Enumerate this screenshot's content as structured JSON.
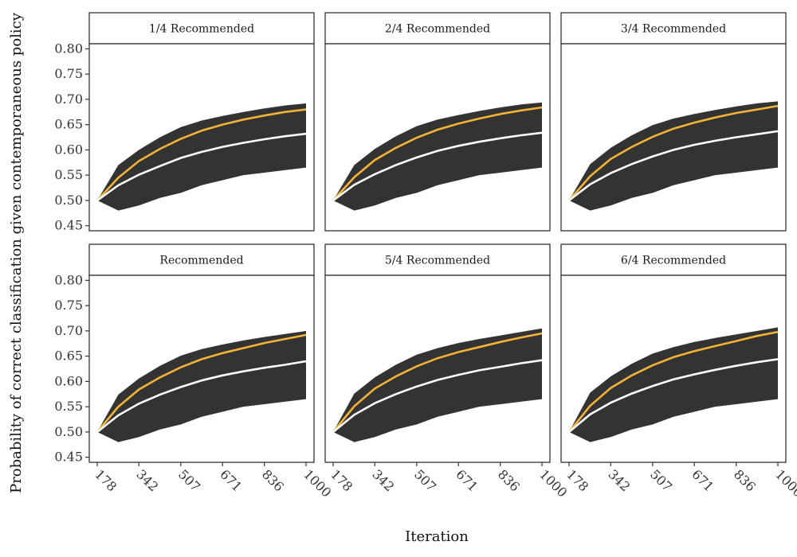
{
  "chart_data": {
    "type": "area",
    "xlabel": "Iteration",
    "ylabel": "Probability of correct classification given contemporaneous policy",
    "x_ticks": [
      178,
      342,
      507,
      671,
      836,
      1000
    ],
    "y_ticks": [
      "0.45",
      "0.50",
      "0.55",
      "0.60",
      "0.65",
      "0.70",
      "0.75",
      "0.80"
    ],
    "xlim": [
      178,
      1000
    ],
    "ylim": [
      0.44,
      0.81
    ],
    "colors": {
      "band": "#333333",
      "median": "#ffffff",
      "upper": "#f5b335"
    },
    "x": [
      178,
      261,
      342,
      425,
      507,
      589,
      671,
      753,
      836,
      918,
      1000
    ],
    "panels": [
      {
        "title": "1/4 Recommended",
        "series": [
          {
            "name": "band_upper",
            "values": [
              0.5,
              0.57,
              0.6,
              0.625,
              0.645,
              0.658,
              0.667,
              0.675,
              0.682,
              0.688,
              0.692
            ]
          },
          {
            "name": "band_lower",
            "values": [
              0.5,
              0.48,
              0.49,
              0.505,
              0.515,
              0.53,
              0.54,
              0.55,
              0.555,
              0.56,
              0.565
            ]
          },
          {
            "name": "upper_line",
            "values": [
              0.5,
              0.545,
              0.578,
              0.602,
              0.622,
              0.638,
              0.65,
              0.66,
              0.668,
              0.675,
              0.68
            ]
          },
          {
            "name": "median_line",
            "values": [
              0.5,
              0.53,
              0.551,
              0.568,
              0.584,
              0.596,
              0.606,
              0.614,
              0.621,
              0.627,
              0.632
            ]
          }
        ]
      },
      {
        "title": "2/4 Recommended",
        "series": [
          {
            "name": "band_upper",
            "values": [
              0.5,
              0.57,
              0.602,
              0.627,
              0.647,
              0.66,
              0.669,
              0.677,
              0.684,
              0.69,
              0.694
            ]
          },
          {
            "name": "band_lower",
            "values": [
              0.5,
              0.48,
              0.49,
              0.505,
              0.515,
              0.53,
              0.54,
              0.55,
              0.555,
              0.56,
              0.565
            ]
          },
          {
            "name": "upper_line",
            "values": [
              0.5,
              0.546,
              0.58,
              0.604,
              0.624,
              0.64,
              0.652,
              0.662,
              0.671,
              0.678,
              0.684
            ]
          },
          {
            "name": "median_line",
            "values": [
              0.5,
              0.531,
              0.552,
              0.57,
              0.585,
              0.598,
              0.608,
              0.616,
              0.623,
              0.629,
              0.634
            ]
          }
        ]
      },
      {
        "title": "3/4 Recommended",
        "series": [
          {
            "name": "band_upper",
            "values": [
              0.5,
              0.572,
              0.604,
              0.629,
              0.649,
              0.662,
              0.671,
              0.679,
              0.686,
              0.692,
              0.696
            ]
          },
          {
            "name": "band_lower",
            "values": [
              0.5,
              0.48,
              0.49,
              0.505,
              0.515,
              0.53,
              0.54,
              0.55,
              0.555,
              0.56,
              0.565
            ]
          },
          {
            "name": "upper_line",
            "values": [
              0.5,
              0.548,
              0.582,
              0.606,
              0.626,
              0.642,
              0.654,
              0.664,
              0.673,
              0.68,
              0.687
            ]
          },
          {
            "name": "median_line",
            "values": [
              0.5,
              0.532,
              0.554,
              0.572,
              0.587,
              0.6,
              0.61,
              0.618,
              0.625,
              0.631,
              0.637
            ]
          }
        ]
      },
      {
        "title": "Recommended",
        "series": [
          {
            "name": "band_upper",
            "values": [
              0.5,
              0.574,
              0.606,
              0.631,
              0.651,
              0.664,
              0.673,
              0.681,
              0.688,
              0.694,
              0.7
            ]
          },
          {
            "name": "band_lower",
            "values": [
              0.5,
              0.48,
              0.49,
              0.505,
              0.515,
              0.53,
              0.54,
              0.55,
              0.555,
              0.56,
              0.565
            ]
          },
          {
            "name": "upper_line",
            "values": [
              0.5,
              0.55,
              0.584,
              0.608,
              0.628,
              0.644,
              0.656,
              0.666,
              0.676,
              0.684,
              0.692
            ]
          },
          {
            "name": "median_line",
            "values": [
              0.5,
              0.533,
              0.556,
              0.574,
              0.589,
              0.602,
              0.612,
              0.62,
              0.627,
              0.633,
              0.64
            ]
          }
        ]
      },
      {
        "title": "5/4 Recommended",
        "series": [
          {
            "name": "band_upper",
            "values": [
              0.5,
              0.576,
              0.608,
              0.633,
              0.653,
              0.666,
              0.676,
              0.684,
              0.691,
              0.698,
              0.705
            ]
          },
          {
            "name": "band_lower",
            "values": [
              0.5,
              0.48,
              0.49,
              0.505,
              0.515,
              0.53,
              0.54,
              0.55,
              0.555,
              0.56,
              0.565
            ]
          },
          {
            "name": "upper_line",
            "values": [
              0.5,
              0.551,
              0.586,
              0.61,
              0.63,
              0.646,
              0.658,
              0.668,
              0.678,
              0.687,
              0.695
            ]
          },
          {
            "name": "median_line",
            "values": [
              0.5,
              0.534,
              0.557,
              0.575,
              0.59,
              0.603,
              0.613,
              0.622,
              0.629,
              0.636,
              0.642
            ]
          }
        ]
      },
      {
        "title": "6/4 Recommended",
        "series": [
          {
            "name": "band_upper",
            "values": [
              0.5,
              0.578,
              0.61,
              0.635,
              0.655,
              0.668,
              0.678,
              0.686,
              0.693,
              0.7,
              0.707
            ]
          },
          {
            "name": "band_lower",
            "values": [
              0.5,
              0.48,
              0.49,
              0.505,
              0.515,
              0.53,
              0.54,
              0.55,
              0.555,
              0.56,
              0.565
            ]
          },
          {
            "name": "upper_line",
            "values": [
              0.5,
              0.552,
              0.587,
              0.612,
              0.632,
              0.648,
              0.66,
              0.67,
              0.68,
              0.69,
              0.698
            ]
          },
          {
            "name": "median_line",
            "values": [
              0.5,
              0.535,
              0.558,
              0.576,
              0.591,
              0.604,
              0.614,
              0.623,
              0.631,
              0.638,
              0.644
            ]
          }
        ]
      }
    ]
  }
}
